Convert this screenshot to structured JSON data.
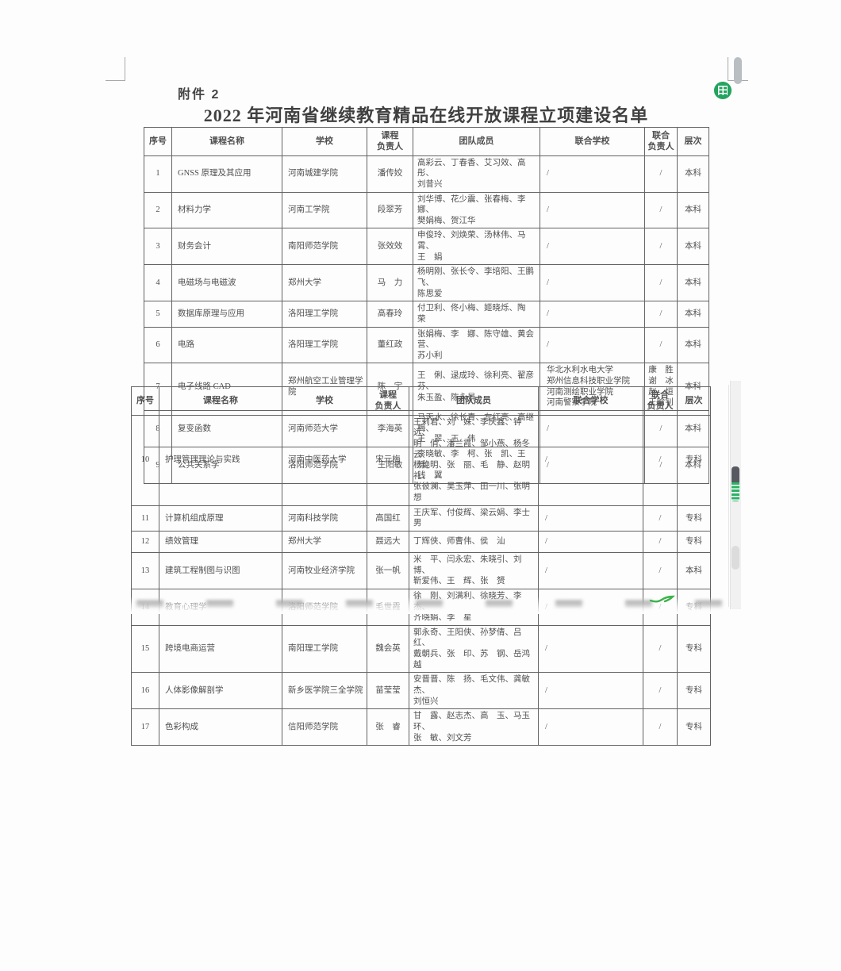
{
  "page": {
    "attachment_label": "附件 2",
    "title": "2022 年河南省继续教育精品在线开放课程立项建设名单"
  },
  "headers": {
    "no": "序号",
    "course": "课程名称",
    "school": "学校",
    "leader": "课程\n负责人",
    "team": "团队成员",
    "joint_school": "联合学校",
    "joint_leader": "联合\n负责人",
    "level": "层次"
  },
  "table1": {
    "rows": [
      {
        "no": "1",
        "course": "GNSS 原理及其应用",
        "school": "河南城建学院",
        "leader": "潘传姣",
        "team": "高彩云、丁春香、艾习效、高　彤、\n刘昔兴",
        "joint_school": "/",
        "joint_leader": "/",
        "level": "本科"
      },
      {
        "no": "2",
        "course": "材料力学",
        "school": "河南工学院",
        "leader": "段翠芳",
        "team": "刘华博、花少震、张春梅、李　娜、\n樊娟梅、贺江华",
        "joint_school": "/",
        "joint_leader": "/",
        "level": "本科"
      },
      {
        "no": "3",
        "course": "财务会计",
        "school": "南阳师范学院",
        "leader": "张效效",
        "team": "申俊玲、刘焕荣、汤林伟、马　霄、\n王　娟",
        "joint_school": "/",
        "joint_leader": "/",
        "level": "本科"
      },
      {
        "no": "4",
        "course": "电磁场与电磁波",
        "school": "郑州大学",
        "leader": "马　力",
        "team": "杨明刚、张长令、李培阳、王鹏飞、\n陈思爱",
        "joint_school": "/",
        "joint_leader": "/",
        "level": "本科"
      },
      {
        "no": "5",
        "course": "数据库原理与应用",
        "school": "洛阳理工学院",
        "leader": "高春玲",
        "team": "付卫利、佟小梅、姬晓烁、陶　荣",
        "joint_school": "/",
        "joint_leader": "/",
        "level": "本科"
      },
      {
        "no": "6",
        "course": "电路",
        "school": "洛阳理工学院",
        "leader": "董红政",
        "team": "张娟梅、李　娜、陈守雄、黄会营、\n苏小利",
        "joint_school": "/",
        "joint_leader": "/",
        "level": "本科"
      },
      {
        "no": "7",
        "course": "电子线路 CAD",
        "school": "郑州航空工业管理学院",
        "leader": "陈　宇",
        "team": "王　俐、逯成玲、徐利亮、翟彦芬、\n朱玉盈、陈永景",
        "joint_school": "华北水利水电大学\n郑州信息科技职业学院\n河南测绘职业学院\n河南警察学院",
        "joint_leader": "康　胜\n谢　冰\n赵　恒\n王晗钊",
        "level": "本科"
      },
      {
        "no": "8",
        "course": "复变函数",
        "school": "河南师范大学",
        "leader": "李海英",
        "team": "马天水、徐长青、左红亮、高继梅、\n王　翠、王　伟",
        "joint_school": "/",
        "joint_leader": "/",
        "level": "本科"
      },
      {
        "no": "9",
        "course": "公共关系学",
        "school": "洛阳师范学院",
        "leader": "王阳敏",
        "team": "李晓敏、李　柯、张　凯、王　烁、\n钱　翼",
        "joint_school": "/",
        "joint_leader": "/",
        "level": "本科"
      }
    ]
  },
  "table2": {
    "rows": [
      {
        "no": "10",
        "course": "护理管理理论与实践",
        "school": "河南中医药大学",
        "leader": "宋元梅",
        "team": "王莉君、刘　姝、李庆鑫、钟　远、\n明　俏、潘兰霞、邹小燕、杨冬云、\n杨艳明、张　丽、毛　静、赵明礼、\n张彼澜、吴玉萍、田一川、张明想",
        "joint_school": "/",
        "joint_leader": "/",
        "level": "专科"
      },
      {
        "no": "11",
        "course": "计算机组成原理",
        "school": "河南科技学院",
        "leader": "高国红",
        "team": "王庆军、付俊辉、梁云娟、李士男",
        "joint_school": "/",
        "joint_leader": "/",
        "level": "专科"
      },
      {
        "no": "12",
        "course": "绩效管理",
        "school": "郑州大学",
        "leader": "聂远大",
        "team": "丁辉侠、师曹伟、侯　汕",
        "joint_school": "/",
        "joint_leader": "/",
        "level": "专科"
      },
      {
        "no": "13",
        "course": "建筑工程制图与识图",
        "school": "河南牧业经济学院",
        "leader": "张一帆",
        "team": "米　平、闫永宏、朱晓引、刘　博、\n靳爱伟、王　辉、张　赟",
        "joint_school": "/",
        "joint_leader": "/",
        "level": "本科"
      },
      {
        "no": "14",
        "course": "教育心理学",
        "school": "洛阳师范学院",
        "leader": "毛世霞",
        "team": "徐　刚、刘满利、徐晓芳、李　杰、\n齐晓娟、李　星",
        "joint_school": "/",
        "joint_leader": "/",
        "level": "专科"
      },
      {
        "no": "15",
        "course": "跨境电商运营",
        "school": "南阳理工学院",
        "leader": "魏会英",
        "team": "郭永奇、王阳侠、孙梦倩、吕　红、\n戴朝兵、张　印、苏　钢、岳鸿越",
        "joint_school": "/",
        "joint_leader": "/",
        "level": "专科"
      },
      {
        "no": "16",
        "course": "人体影像解剖学",
        "school": "新乡医学院三全学院",
        "leader": "苗莹莹",
        "team": "安晋晋、陈　扬、毛文伟、龚敏杰、\n刘恒兴",
        "joint_school": "/",
        "joint_leader": "/",
        "level": "专科"
      },
      {
        "no": "17",
        "course": "色彩构成",
        "school": "信阳师范学院",
        "leader": "张　睿",
        "team": "甘　露、赵志杰、高　玉、马玉环、\n张　敏、刘文芳",
        "joint_school": "/",
        "joint_leader": "/",
        "level": "专科"
      }
    ]
  },
  "decor": {
    "doc_icon": "green-spreadsheet-icon",
    "doc_icon_color": "#23a45f",
    "scrollbar_green": "#2fb066",
    "check_color": "#3cb34a"
  }
}
